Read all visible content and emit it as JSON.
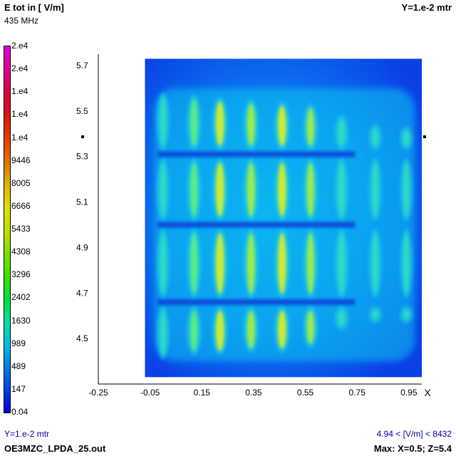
{
  "header": {
    "title": "E tot in [ V/m]",
    "frequency": "435 MHz",
    "plane": "Y=1.e-2 mtr"
  },
  "footer": {
    "plane": "Y=1.e-2 mtr",
    "range": "4.94 < [V/m] < 8432",
    "filename": "OE3MZC_LPDA_25.out",
    "max": "Max: X=0.5; Z=5.4"
  },
  "legend": {
    "labels": [
      "2.e4",
      "2.e4",
      "1.e4",
      "1.e4",
      "1.e4",
      "9446",
      "8005",
      "6666",
      "5433",
      "4308",
      "3296",
      "2402",
      "1630",
      "989",
      "489",
      "147",
      "0.04"
    ],
    "colors": [
      "#e000e0",
      "#e00090",
      "#e00040",
      "#e01010",
      "#e04000",
      "#e07000",
      "#e0b000",
      "#e0e000",
      "#c0e000",
      "#80e000",
      "#40e000",
      "#00e040",
      "#00e0a0",
      "#00c0e0",
      "#0080e0",
      "#0040e0",
      "#0000e0"
    ]
  },
  "chart_data": {
    "type": "heatmap",
    "title": "E tot in [ V/m]",
    "xlabel": "X",
    "ylabel": "",
    "xlim": [
      -0.25,
      1.0
    ],
    "ylim": [
      4.3,
      5.75
    ],
    "x_ticks": [
      "-0.25",
      "-0.05",
      "0.15",
      "0.35",
      "0.55",
      "0.75",
      "0.95"
    ],
    "x_tick_values": [
      -0.25,
      -0.05,
      0.15,
      0.35,
      0.55,
      0.75,
      0.95
    ],
    "y_ticks": [
      "4.5",
      "4.7",
      "4.9",
      "5.1",
      "5.3",
      "5.5",
      "5.7"
    ],
    "y_tick_values": [
      4.5,
      4.7,
      4.9,
      5.1,
      5.3,
      5.5,
      5.7
    ],
    "field_extent": {
      "x": [
        -0.07,
        1.0
      ],
      "z": [
        4.33,
        5.73
      ]
    },
    "value_range": [
      4.94,
      8432
    ],
    "units": "V/m",
    "max_location": {
      "x": 0.5,
      "z": 5.4
    },
    "elements": [
      {
        "x": 0.0,
        "z_top": 5.57,
        "z_bottom": 4.42,
        "level": 0.35
      },
      {
        "x": 0.12,
        "z_top": 5.56,
        "z_bottom": 4.44,
        "level": 0.6
      },
      {
        "x": 0.22,
        "z_top": 5.55,
        "z_bottom": 4.44,
        "level": 0.78
      },
      {
        "x": 0.34,
        "z_top": 5.54,
        "z_bottom": 4.45,
        "level": 0.7
      },
      {
        "x": 0.46,
        "z_top": 5.53,
        "z_bottom": 4.45,
        "level": 0.75
      },
      {
        "x": 0.57,
        "z_top": 5.52,
        "z_bottom": 4.47,
        "level": 0.62
      },
      {
        "x": 0.69,
        "z_top": 5.47,
        "z_bottom": 4.55,
        "level": 0.45
      },
      {
        "x": 0.82,
        "z_top": 5.43,
        "z_bottom": 4.58,
        "level": 0.3
      },
      {
        "x": 0.94,
        "z_top": 5.42,
        "z_bottom": 4.58,
        "level": 0.28
      }
    ]
  }
}
